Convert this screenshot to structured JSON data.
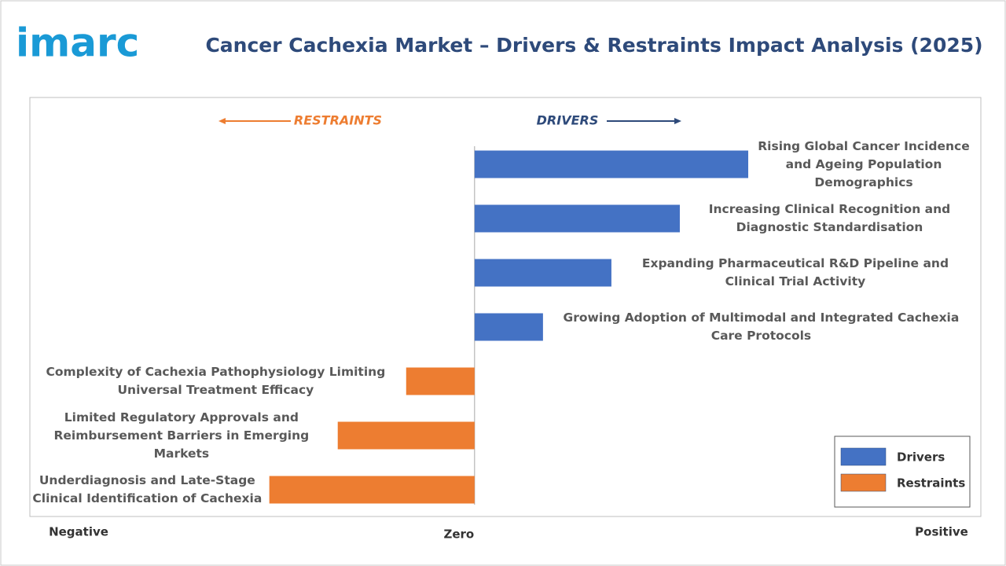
{
  "logo": "imarc",
  "chart_data": {
    "type": "diverging-bar",
    "title": "Cancer Cachexia Market – Drivers & Restraints Impact Analysis (2025)",
    "restraints_label": "RESTRAINTS",
    "drivers_label": "DRIVERS",
    "axis_labels": {
      "negative": "Negative",
      "zero": "Zero",
      "positive": "Positive"
    },
    "categories": [
      "Rising Global Cancer Incidence and Ageing Population Demographics",
      "Increasing Clinical Recognition and Diagnostic Standardisation",
      "Expanding Pharmaceutical R&D Pipeline and Clinical Trial Activity",
      "Growing Adoption of Multimodal and Integrated Cachexia Care Protocols",
      "Complexity of Cachexia Pathophysiology Limiting Universal Treatment Efficacy",
      "Limited Regulatory Approvals and Reimbursement Barriers in Emerging Markets",
      "Underdiagnosis and Late-Stage Clinical Identification of Cachexia"
    ],
    "series": [
      {
        "name": "Drivers",
        "color": "#4472c4",
        "values": [
          4,
          3,
          2,
          1,
          null,
          null,
          null
        ]
      },
      {
        "name": "Restraints",
        "color": "#ed7d31",
        "values": [
          null,
          null,
          null,
          null,
          -1,
          -2,
          -3
        ]
      }
    ],
    "xlim": [
      -6.5,
      7.4
    ],
    "grid": false,
    "legend": "lower right"
  }
}
